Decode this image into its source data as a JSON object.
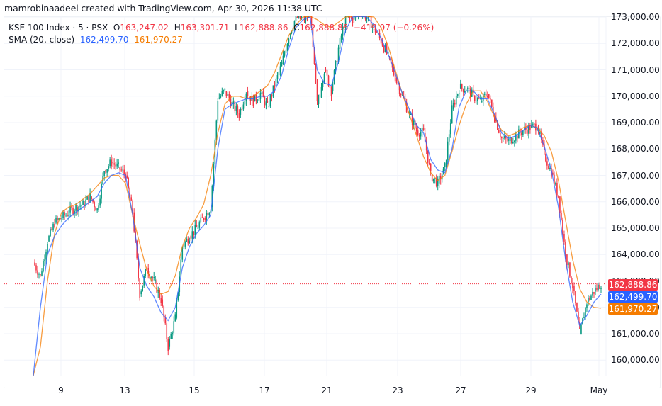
{
  "header": {
    "credit": "mamrobinaadeel created with TradingView.com, Apr 30, 2026 11:38 UTC"
  },
  "legend": {
    "symbol": "KSE 100 Index · 5 · PSX",
    "open_label": "O",
    "open": "163,247.02",
    "high_label": "H",
    "high": "163,301.71",
    "low_label": "L",
    "low": "162,888.86",
    "close_label": "C",
    "close": "162,888.86",
    "change": "−419.97 (−0.26%)",
    "indicator": "SMA (20, close)",
    "sma_fast": "162,499.70",
    "sma_slow": "161,970.27"
  },
  "price_labels": {
    "last": "162,888.86",
    "sma_fast": "162,499.70",
    "sma_slow": "161,970.27"
  },
  "colors": {
    "up": "#089981",
    "down": "#f23645",
    "sma_fast": "#2962ff",
    "sma_slow": "#f57c00",
    "grid": "#f0f3fa"
  },
  "chart_data": {
    "type": "line",
    "title": "KSE 100 Index · 5 · PSX",
    "subtitle": "SMA (20, close)",
    "xlabel": "",
    "ylabel": "",
    "ylim": [
      159300,
      173000
    ],
    "grid": true,
    "legend_position": "top-left",
    "x_ticks": [
      "9",
      "13",
      "15",
      "17",
      "21",
      "23",
      "27",
      "29",
      "May"
    ],
    "y_ticks": [
      "160,000.00",
      "161,000.00",
      "162,000.00",
      "163,000.00",
      "164,000.00",
      "165,000.00",
      "166,000.00",
      "167,000.00",
      "168,000.00",
      "169,000.00",
      "170,000.00",
      "171,000.00",
      "172,000.00",
      "173,000.00"
    ],
    "x": [
      0,
      1,
      2,
      3,
      4,
      5,
      6,
      7,
      8,
      9,
      10,
      11,
      12,
      13,
      14,
      15,
      16,
      17,
      18,
      19,
      20,
      21,
      22,
      23,
      24,
      25,
      26,
      27,
      28,
      29,
      30,
      31,
      32,
      33,
      34,
      35,
      36,
      37,
      38,
      39,
      40,
      41,
      42,
      43,
      44,
      45,
      46,
      47,
      48,
      49,
      50,
      51,
      52,
      53,
      54,
      55,
      56,
      57,
      58,
      59,
      60,
      61,
      62,
      63,
      64,
      65,
      66,
      67,
      68,
      69,
      70,
      71,
      72,
      73,
      74,
      75,
      76,
      77,
      78,
      79,
      80
    ],
    "series": [
      {
        "name": "KSE 100 Index (close)",
        "values": [
          163700,
          163200,
          164500,
          165200,
          165400,
          165600,
          165800,
          165900,
          166200,
          165700,
          167200,
          167500,
          167300,
          167000,
          165600,
          162500,
          163500,
          163000,
          162300,
          160500,
          161600,
          164300,
          164700,
          165000,
          165400,
          165800,
          169900,
          170200,
          169700,
          169300,
          170200,
          169800,
          170100,
          169600,
          170400,
          171200,
          172300,
          173000,
          172900,
          173100,
          169700,
          171000,
          170200,
          171800,
          173000,
          172900,
          173200,
          173000,
          172600,
          172100,
          171500,
          170700,
          170000,
          169300,
          168700,
          168600,
          167000,
          166700,
          167300,
          169500,
          170300,
          170300,
          170000,
          169800,
          170100,
          169200,
          168400,
          168300,
          168500,
          168700,
          168800,
          168900,
          167800,
          167100,
          166200,
          164000,
          162800,
          161000,
          162200,
          162600,
          162900
        ]
      },
      {
        "name": "SMA 20 (close)",
        "values": [
          159400,
          162000,
          164000,
          164700,
          165100,
          165400,
          165600,
          165800,
          166000,
          166200,
          166700,
          167000,
          167100,
          167000,
          165500,
          163500,
          162800,
          162400,
          161800,
          161500,
          162000,
          163500,
          164300,
          164800,
          165100,
          165500,
          168000,
          169500,
          169700,
          169800,
          169900,
          169900,
          170000,
          170000,
          170200,
          170800,
          171800,
          172600,
          172900,
          173000,
          171000,
          170500,
          170400,
          171300,
          172500,
          173000,
          173100,
          173000,
          172700,
          172200,
          171600,
          170900,
          170100,
          169500,
          168900,
          168600,
          167600,
          167200,
          167100,
          168000,
          169600,
          170200,
          170200,
          169900,
          169900,
          169300,
          168600,
          168400,
          168500,
          168700,
          168900,
          168800,
          168100,
          167200,
          165800,
          163800,
          162200,
          161300,
          161700,
          162200,
          162500
        ]
      },
      {
        "name": "SMA (slow)",
        "values": [
          159300,
          160500,
          163000,
          164800,
          165600,
          165800,
          165900,
          166100,
          166300,
          166600,
          166900,
          167000,
          167000,
          166700,
          165500,
          164400,
          163400,
          162800,
          162500,
          162600,
          163200,
          164300,
          165000,
          165400,
          165900,
          167000,
          168600,
          169700,
          170000,
          170000,
          169900,
          170000,
          170200,
          170400,
          170900,
          171600,
          172300,
          172700,
          173000,
          173200,
          172900,
          172700,
          172600,
          172800,
          173000,
          173200,
          173300,
          173200,
          173000,
          172600,
          171900,
          171000,
          170100,
          169300,
          168500,
          167700,
          167100,
          166800,
          167000,
          167900,
          168900,
          169700,
          170200,
          170200,
          169800,
          169200,
          168700,
          168500,
          168600,
          168800,
          168900,
          168800,
          168500,
          167900,
          166800,
          165300,
          163800,
          162700,
          162200,
          162000,
          161970
        ]
      }
    ],
    "last_price": 162888.86
  }
}
